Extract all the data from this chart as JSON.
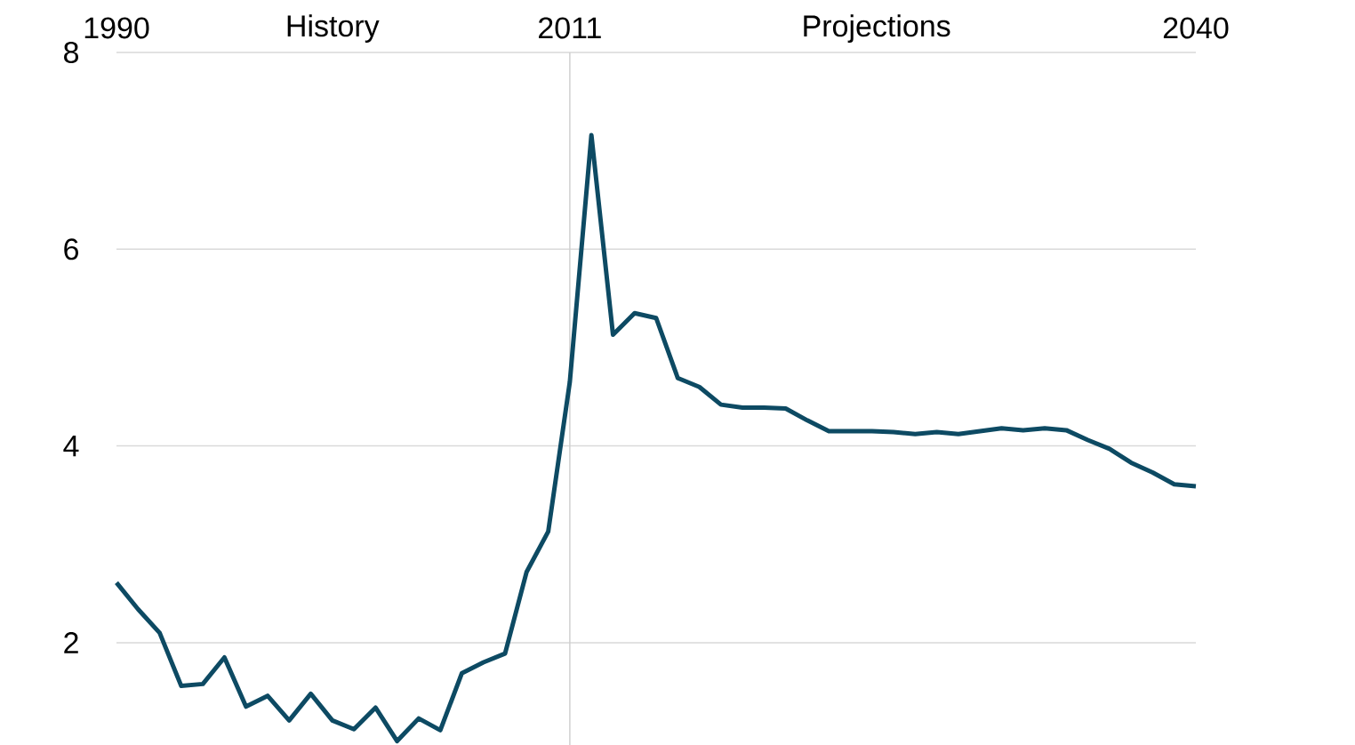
{
  "chart_data": {
    "type": "line",
    "x": [
      1990,
      1991,
      1992,
      1993,
      1994,
      1995,
      1996,
      1997,
      1998,
      1999,
      2000,
      2001,
      2002,
      2003,
      2004,
      2005,
      2006,
      2007,
      2008,
      2009,
      2010,
      2011,
      2012,
      2013,
      2014,
      2015,
      2016,
      2017,
      2018,
      2019,
      2020,
      2021,
      2022,
      2023,
      2024,
      2025,
      2026,
      2027,
      2028,
      2029,
      2030,
      2031,
      2032,
      2033,
      2034,
      2035,
      2036,
      2037,
      2038,
      2039,
      2040
    ],
    "series": [
      {
        "color": "#0d4a63",
        "values": [
          2.61,
          2.34,
          2.1,
          1.56,
          1.58,
          1.85,
          1.35,
          1.46,
          1.21,
          1.48,
          1.21,
          1.12,
          1.34,
          1.0,
          1.23,
          1.11,
          1.69,
          1.8,
          1.89,
          2.72,
          3.13,
          4.65,
          7.16,
          5.13,
          5.35,
          5.3,
          4.69,
          4.6,
          4.42,
          4.39,
          4.39,
          4.38,
          4.26,
          4.15,
          4.15,
          4.15,
          4.14,
          4.12,
          4.14,
          4.12,
          4.15,
          4.18,
          4.16,
          4.18,
          4.16,
          4.06,
          3.97,
          3.83,
          3.73,
          3.61,
          3.59
        ]
      }
    ],
    "xlim": [
      1990,
      2040
    ],
    "xticks": [
      1990,
      2011,
      2040
    ],
    "ylim": [
      0.96,
      8
    ],
    "yticks": [
      2,
      4,
      6,
      8
    ],
    "grid": "y",
    "legend": false,
    "marker": "none",
    "line_style": "solid",
    "ref_lines": [
      {
        "axis": "x",
        "value": 2011,
        "color": "#d0d0d0"
      }
    ],
    "annotations": [
      "History",
      "Projections"
    ]
  }
}
